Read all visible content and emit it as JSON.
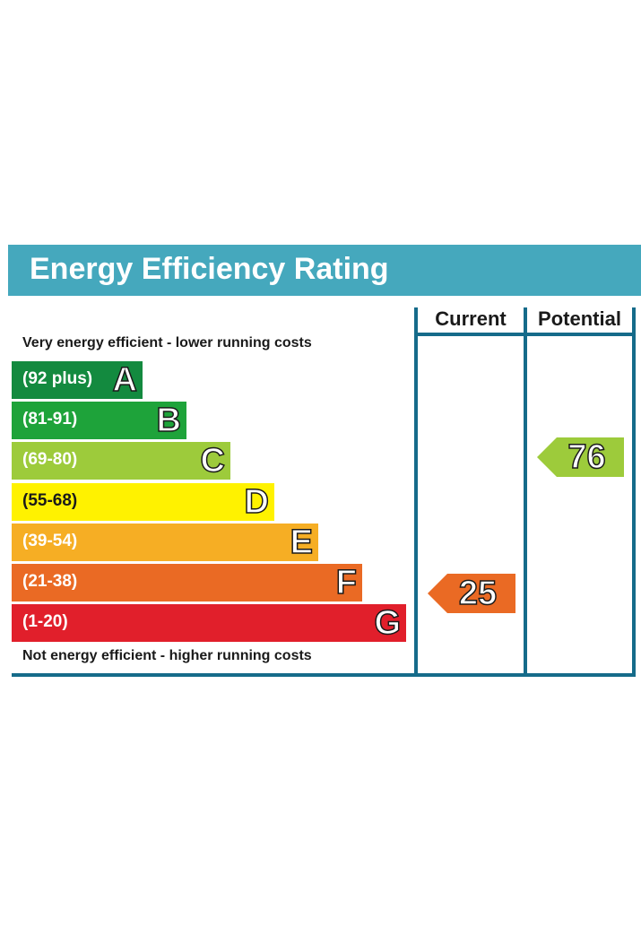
{
  "title": "Energy Efficiency Rating",
  "columns": {
    "current": "Current",
    "potential": "Potential"
  },
  "top_note": "Very energy efficient - lower running costs",
  "bottom_note": "Not energy efficient - higher running costs",
  "colors": {
    "header": "#45a8bd",
    "frame": "#156b8a"
  },
  "chart_data": {
    "type": "bar",
    "title": "Energy Efficiency Rating",
    "bands": [
      {
        "letter": "A",
        "range": "(92 plus)",
        "color": "#138a3f"
      },
      {
        "letter": "B",
        "range": "(81-91)",
        "color": "#1ea33a"
      },
      {
        "letter": "C",
        "range": "(69-80)",
        "color": "#9dcb3b"
      },
      {
        "letter": "D",
        "range": "(55-68)",
        "color": "#fff200"
      },
      {
        "letter": "E",
        "range": "(39-54)",
        "color": "#f6ae24"
      },
      {
        "letter": "F",
        "range": "(21-38)",
        "color": "#ea6a24"
      },
      {
        "letter": "G",
        "range": "(1-20)",
        "color": "#e11f2b"
      }
    ],
    "current": {
      "value": 25,
      "band": "F",
      "color": "#ea6a24"
    },
    "potential": {
      "value": 76,
      "band": "C",
      "color": "#9dcb3b"
    }
  }
}
